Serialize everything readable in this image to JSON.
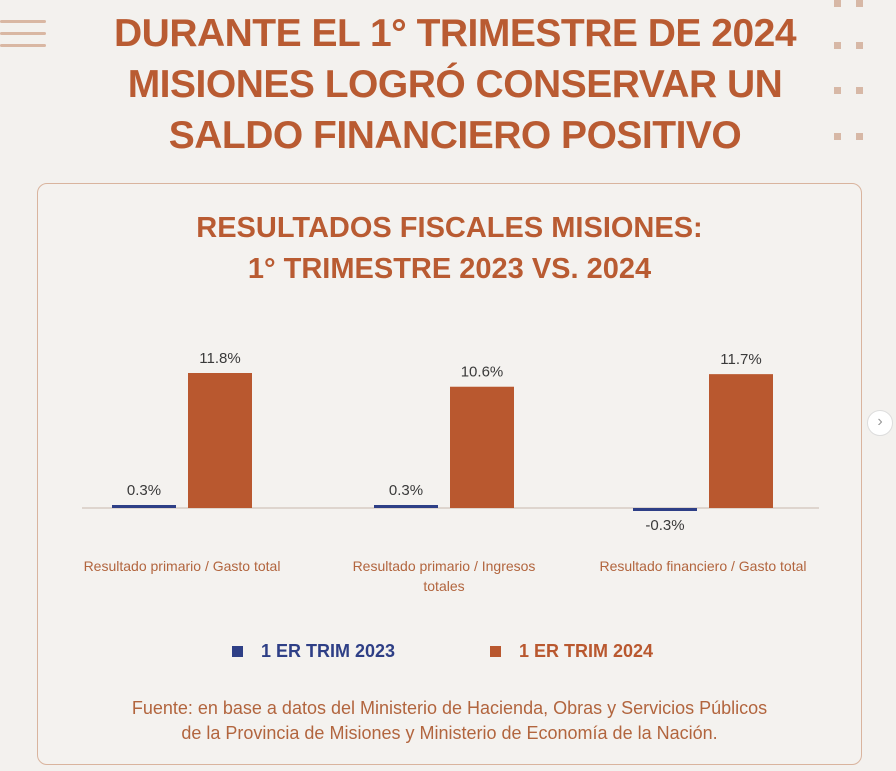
{
  "headline": {
    "line1": "DURANTE EL 1° TRIMESTRE DE 2024",
    "line2": "MISIONES LOGRÓ CONSERVAR UN",
    "line3": "SALDO FINANCIERO POSITIVO"
  },
  "colors": {
    "accent": "#b95b32",
    "series2023": "#2e3f86",
    "series2024": "#b9582f"
  },
  "chart_data": {
    "type": "bar",
    "title_line1": "RESULTADOS FISCALES MISIONES:",
    "title_line2": "1° TRIMESTRE 2023 VS. 2024",
    "categories": [
      [
        "Resultado primario / Gasto total"
      ],
      [
        "Resultado primario / Ingresos",
        "totales"
      ],
      [
        "Resultado financiero / Gasto total"
      ]
    ],
    "series": [
      {
        "name": "1 ER TRIM 2023",
        "values": [
          0.3,
          0.3,
          -0.3
        ],
        "labels": [
          "0.3%",
          "0.3%",
          "-0.3%"
        ]
      },
      {
        "name": "1 ER TRIM 2024",
        "values": [
          11.8,
          10.6,
          11.7
        ],
        "labels": [
          "11.8%",
          "10.6%",
          "11.7%"
        ]
      }
    ],
    "ylim": [
      -0.5,
      12
    ],
    "legend": "bottom"
  },
  "source": {
    "line1": "Fuente: en base a datos del Ministerio de Hacienda, Obras y Servicios Públicos",
    "line2": "de la Provincia de Misiones y Ministerio de Economía de la Nación."
  }
}
